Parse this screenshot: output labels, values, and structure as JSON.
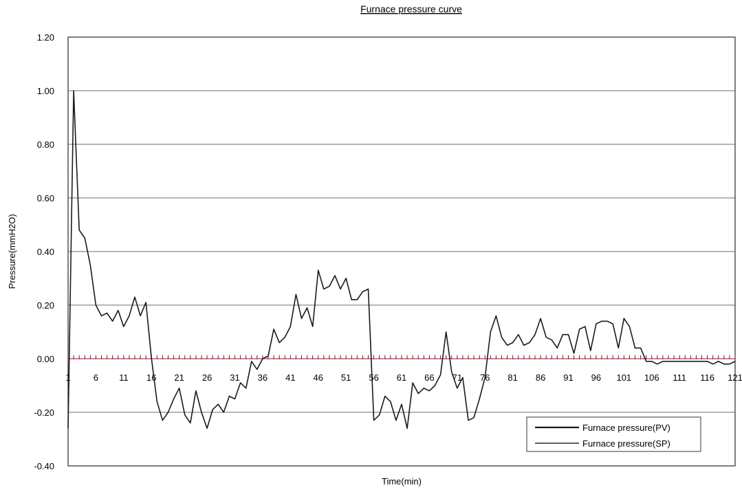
{
  "chart_data": {
    "type": "line",
    "title": "Furnace pressure curve",
    "xlabel": "Time(min)",
    "ylabel": "Pressure(mmH2O)",
    "ylim": [
      -0.4,
      1.2
    ],
    "y_ticks": [
      "1.20",
      "1.00",
      "0.80",
      "0.60",
      "0.40",
      "0.20",
      "0.00",
      "-0.20",
      "-0.40"
    ],
    "y_tick_values": [
      1.2,
      1.0,
      0.8,
      0.6,
      0.4,
      0.2,
      0.0,
      -0.2,
      -0.4
    ],
    "x_range": [
      1,
      121
    ],
    "x_ticks": [
      "1",
      "6",
      "11",
      "16",
      "21",
      "26",
      "31",
      "36",
      "41",
      "46",
      "51",
      "56",
      "61",
      "66",
      "71",
      "76",
      "81",
      "86",
      "91",
      "96",
      "101",
      "106",
      "111",
      "116",
      "121"
    ],
    "x_tick_values": [
      1,
      6,
      11,
      16,
      21,
      26,
      31,
      36,
      41,
      46,
      51,
      56,
      61,
      66,
      71,
      76,
      81,
      86,
      91,
      96,
      101,
      106,
      111,
      116,
      121
    ],
    "grid": true,
    "legend_position": "bottom-right",
    "series": [
      {
        "name": "Furnace pressure(PV)",
        "color": "#1a1a1a",
        "x": [
          1,
          2,
          3,
          4,
          5,
          6,
          7,
          8,
          9,
          10,
          11,
          12,
          13,
          14,
          15,
          16,
          17,
          18,
          19,
          20,
          21,
          22,
          23,
          24,
          25,
          26,
          27,
          28,
          29,
          30,
          31,
          32,
          33,
          34,
          35,
          36,
          37,
          38,
          39,
          40,
          41,
          42,
          43,
          44,
          45,
          46,
          47,
          48,
          49,
          50,
          51,
          52,
          53,
          54,
          55,
          56,
          57,
          58,
          59,
          60,
          61,
          62,
          63,
          64,
          65,
          66,
          67,
          68,
          69,
          70,
          71,
          72,
          73,
          74,
          75,
          76,
          77,
          78,
          79,
          80,
          81,
          82,
          83,
          84,
          85,
          86,
          87,
          88,
          89,
          90,
          91,
          92,
          93,
          94,
          95,
          96,
          97,
          98,
          99,
          100,
          101,
          102,
          103,
          104,
          105,
          106,
          107,
          108,
          109,
          110,
          111,
          112,
          113,
          114,
          115,
          116,
          117,
          118,
          119,
          120,
          121
        ],
        "values": [
          -0.26,
          1.0,
          0.48,
          0.45,
          0.35,
          0.2,
          0.16,
          0.17,
          0.14,
          0.18,
          0.12,
          0.16,
          0.23,
          0.16,
          0.21,
          0.0,
          -0.16,
          -0.23,
          -0.2,
          -0.15,
          -0.11,
          -0.21,
          -0.24,
          -0.12,
          -0.2,
          -0.26,
          -0.19,
          -0.17,
          -0.2,
          -0.14,
          -0.15,
          -0.09,
          -0.11,
          -0.01,
          -0.04,
          0.0,
          0.01,
          0.11,
          0.06,
          0.08,
          0.12,
          0.24,
          0.15,
          0.19,
          0.12,
          0.33,
          0.26,
          0.27,
          0.31,
          0.26,
          0.3,
          0.22,
          0.22,
          0.25,
          0.26,
          -0.23,
          -0.21,
          -0.14,
          -0.16,
          -0.23,
          -0.17,
          -0.26,
          -0.09,
          -0.13,
          -0.11,
          -0.12,
          -0.1,
          -0.06,
          0.1,
          -0.05,
          -0.11,
          -0.07,
          -0.23,
          -0.22,
          -0.15,
          -0.07,
          0.1,
          0.16,
          0.08,
          0.05,
          0.06,
          0.09,
          0.05,
          0.06,
          0.09,
          0.15,
          0.08,
          0.07,
          0.04,
          0.09,
          0.09,
          0.02,
          0.11,
          0.12,
          0.03,
          0.13,
          0.14,
          0.14,
          0.13,
          0.04,
          0.15,
          0.12,
          0.04,
          0.04,
          -0.01,
          -0.01,
          -0.02,
          -0.01,
          -0.01,
          -0.01,
          -0.01,
          -0.01,
          -0.01,
          -0.01,
          -0.01,
          -0.01,
          -0.02,
          -0.01,
          -0.02,
          -0.02,
          -0.01
        ]
      },
      {
        "name": "Furnace pressure(SP)",
        "color": "#b23a4a",
        "x": [
          1,
          121
        ],
        "values": [
          0.0,
          0.0
        ]
      }
    ]
  }
}
